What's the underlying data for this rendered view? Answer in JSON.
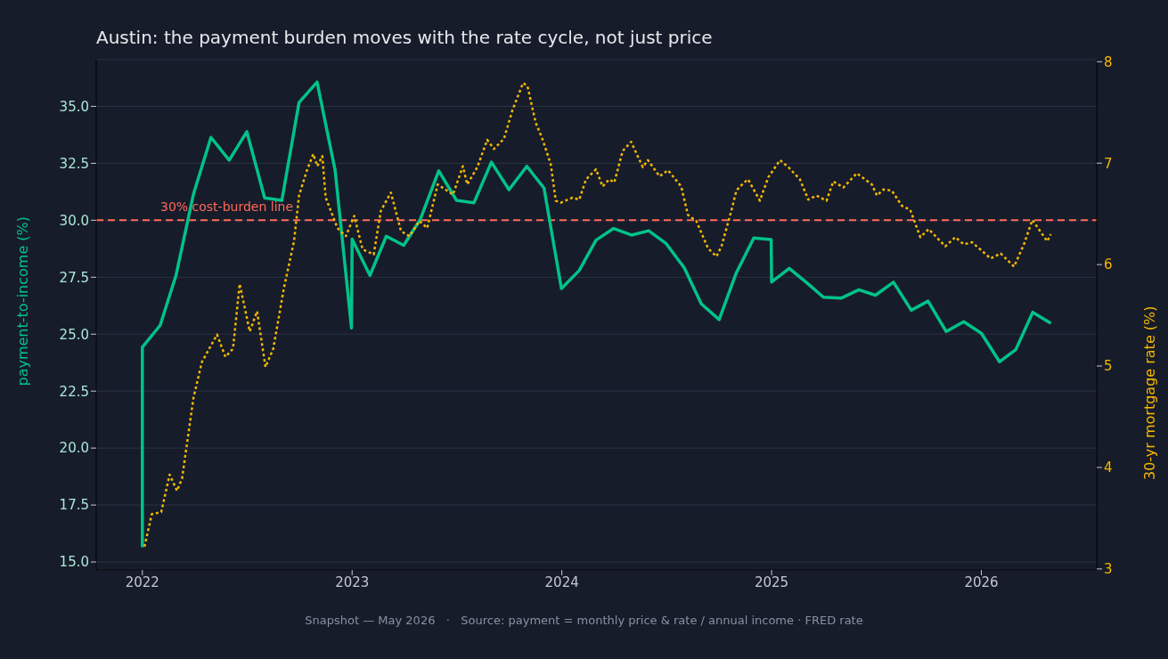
{
  "chart_data": {
    "type": "line",
    "title": "Austin: the payment burden moves with the rate cycle, not just price",
    "ylabel": "payment-to-income (%)",
    "y2label": "30-yr mortgage rate (%)",
    "annotations": [
      "Snapshot — May 2026   ·   Source: payment = monthly price & rate / annual income · FRED rate"
    ],
    "xlim": [
      2021.78,
      2026.55
    ],
    "xticks": [
      2022,
      2023,
      2024,
      2025,
      2026
    ],
    "ylim": [
      14.65,
      37.05
    ],
    "yticks": [
      {
        "value": 15,
        "label": "15.0"
      },
      {
        "value": 17.5,
        "label": "17.5"
      },
      {
        "value": 20,
        "label": "20.0"
      },
      {
        "value": 22.5,
        "label": "22.5"
      },
      {
        "value": 25,
        "label": "25.0"
      },
      {
        "value": 27.5,
        "label": "27.5"
      },
      {
        "value": 30,
        "label": "30.0"
      },
      {
        "value": 32.5,
        "label": "32.5"
      },
      {
        "value": 35,
        "label": "35.0"
      }
    ],
    "y2lim": [
      2.99,
      8.02
    ],
    "y2ticks": [
      3,
      4,
      5,
      6,
      7,
      8
    ],
    "grid": "y",
    "ref_lines": [
      {
        "axis": "y",
        "value": 30,
        "label": "30% cost-burden line",
        "color": "#ff6b5b",
        "line_style": "dashed"
      }
    ],
    "series": [
      {
        "color": "#00c389",
        "line_style": "solid",
        "x": [
          2022.0,
          2022.0,
          2022.085,
          2022.161,
          2022.244,
          2022.327,
          2022.414,
          2022.498,
          2022.583,
          2022.665,
          2022.747,
          2022.833,
          2022.919,
          2022.997,
          2023.0,
          2023.085,
          2023.163,
          2023.246,
          2023.325,
          2023.413,
          2023.498,
          2023.581,
          2023.664,
          2023.748,
          2023.833,
          2023.915,
          2023.998,
          2024.083,
          2024.163,
          2024.247,
          2024.332,
          2024.414,
          2024.497,
          2024.583,
          2024.665,
          2024.75,
          2024.832,
          2024.915,
          2024.998,
          2025.0,
          2025.084,
          2025.167,
          2025.247,
          2025.331,
          2025.416,
          2025.495,
          2025.581,
          2025.666,
          2025.746,
          2025.832,
          2025.916,
          2026.0,
          2026.087,
          2026.164,
          2026.245,
          2026.331
        ],
        "values": [
          15.65,
          24.43,
          25.39,
          27.6,
          31.16,
          33.64,
          32.64,
          33.89,
          30.98,
          30.87,
          35.17,
          36.07,
          32.2,
          25.27,
          29.17,
          27.58,
          29.3,
          28.9,
          30.04,
          32.17,
          30.87,
          30.77,
          32.55,
          31.34,
          32.37,
          31.41,
          27.0,
          27.8,
          29.13,
          29.64,
          29.35,
          29.54,
          28.98,
          27.92,
          26.33,
          25.64,
          27.7,
          29.22,
          29.15,
          27.29,
          27.89,
          27.26,
          26.62,
          26.58,
          26.95,
          26.71,
          27.28,
          26.05,
          26.45,
          25.12,
          25.55,
          25.04,
          23.79,
          24.32,
          25.96,
          25.48
        ]
      },
      {
        "color": "#f5b800",
        "line_style": "dotted",
        "axis": "y2",
        "x": [
          2022.01,
          2022.045,
          2022.09,
          2022.13,
          2022.165,
          2022.189,
          2022.244,
          2022.284,
          2022.356,
          2022.396,
          2022.432,
          2022.464,
          2022.512,
          2022.547,
          2022.587,
          2022.624,
          2022.675,
          2022.723,
          2022.747,
          2022.783,
          2022.815,
          2022.834,
          2022.858,
          2022.874,
          2022.93,
          2022.97,
          2023.01,
          2023.05,
          2023.103,
          2023.137,
          2023.185,
          2023.233,
          2023.273,
          2023.321,
          2023.358,
          2023.408,
          2023.481,
          2023.528,
          2023.549,
          2023.597,
          2023.644,
          2023.676,
          2023.724,
          2023.764,
          2023.815,
          2023.836,
          2023.875,
          2023.907,
          2023.947,
          2023.971,
          2023.995,
          2024.051,
          2024.083,
          2024.115,
          2024.163,
          2024.194,
          2024.226,
          2024.25,
          2024.29,
          2024.33,
          2024.386,
          2024.41,
          2024.466,
          2024.506,
          2024.569,
          2024.601,
          2024.641,
          2024.697,
          2024.737,
          2024.761,
          2024.808,
          2024.832,
          2024.864,
          2024.888,
          2024.944,
          2024.984,
          2025.04,
          2025.08,
          2025.135,
          2025.175,
          2025.214,
          2025.262,
          2025.294,
          2025.342,
          2025.406,
          2025.478,
          2025.502,
          2025.533,
          2025.573,
          2025.621,
          2025.661,
          2025.709,
          2025.749,
          2025.828,
          2025.876,
          2025.916,
          2025.956,
          2026.044,
          2026.092,
          2026.156,
          2026.203,
          2026.243,
          2026.314,
          2026.331
        ],
        "values": [
          3.22,
          3.54,
          3.56,
          3.93,
          3.77,
          3.89,
          4.69,
          5.04,
          5.31,
          5.09,
          5.17,
          5.81,
          5.34,
          5.54,
          4.99,
          5.17,
          5.77,
          6.23,
          6.68,
          6.92,
          7.09,
          6.97,
          7.07,
          6.66,
          6.36,
          6.28,
          6.48,
          6.15,
          6.1,
          6.53,
          6.71,
          6.33,
          6.28,
          6.43,
          6.36,
          6.79,
          6.69,
          6.97,
          6.79,
          6.96,
          7.23,
          7.14,
          7.24,
          7.52,
          7.79,
          7.76,
          7.4,
          7.24,
          6.99,
          6.63,
          6.61,
          6.66,
          6.64,
          6.84,
          6.94,
          6.77,
          6.84,
          6.81,
          7.12,
          7.21,
          6.96,
          7.03,
          6.87,
          6.93,
          6.77,
          6.49,
          6.43,
          6.16,
          6.08,
          6.18,
          6.53,
          6.73,
          6.8,
          6.84,
          6.63,
          6.86,
          7.03,
          6.96,
          6.84,
          6.64,
          6.68,
          6.63,
          6.82,
          6.76,
          6.9,
          6.79,
          6.68,
          6.74,
          6.73,
          6.58,
          6.54,
          6.27,
          6.35,
          6.18,
          6.27,
          6.2,
          6.22,
          6.06,
          6.11,
          5.98,
          6.2,
          6.44,
          6.23,
          6.3
        ]
      }
    ]
  }
}
